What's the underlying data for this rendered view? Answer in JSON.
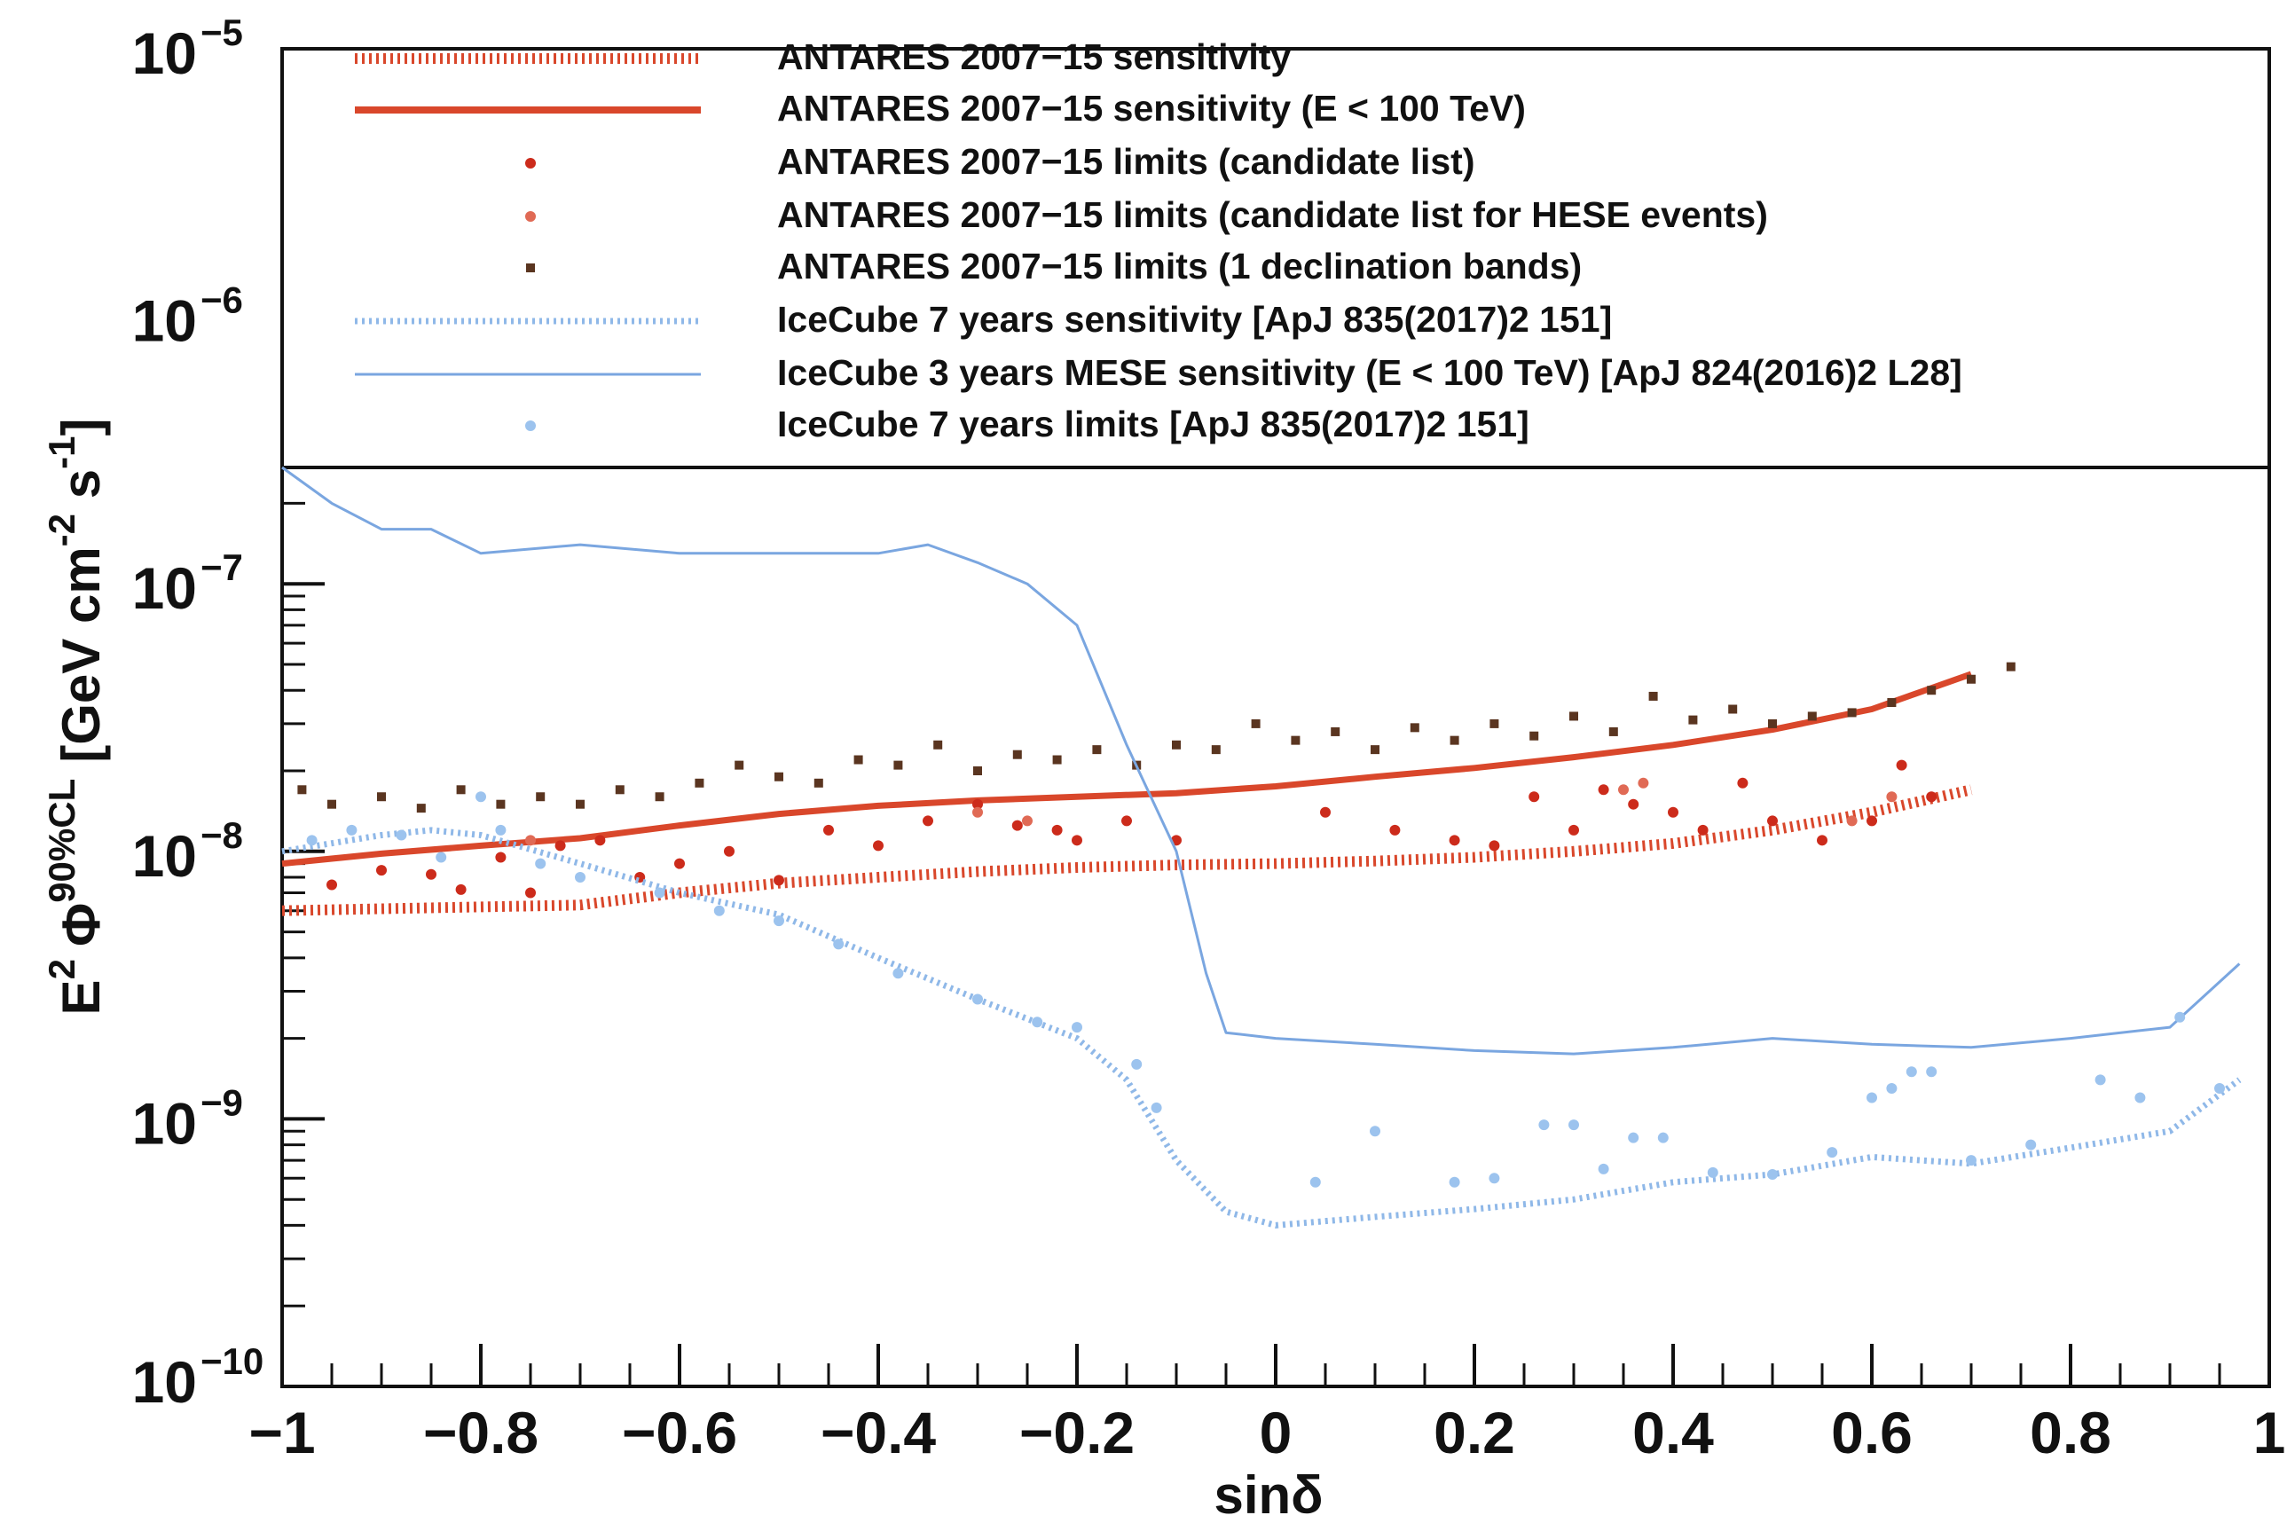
{
  "chart_data": {
    "type": "scatter",
    "title": "",
    "xlabel": "sinδ",
    "ylabel": "E² Φ⁹⁰%CL [GeV cm⁻² s⁻¹]",
    "ylabel_parts": {
      "base": "E",
      "sup1": "2",
      "phi": "Φ",
      "sup2": "90%CL",
      "unit_open": "[GeV cm",
      "unit_sup1": "-2",
      "unit_mid": " s",
      "unit_sup2": "-1",
      "unit_close": "]"
    },
    "xlim": [
      -1,
      1
    ],
    "ylim": [
      1e-10,
      1e-05
    ],
    "yscale": "log",
    "x_ticks": [
      {
        "value": -1,
        "label": "−1"
      },
      {
        "value": -0.8,
        "label": "−0.8"
      },
      {
        "value": -0.6,
        "label": "−0.6"
      },
      {
        "value": -0.4,
        "label": "−0.4"
      },
      {
        "value": -0.2,
        "label": "−0.2"
      },
      {
        "value": 0,
        "label": "0"
      },
      {
        "value": 0.2,
        "label": "0.2"
      },
      {
        "value": 0.4,
        "label": "0.4"
      },
      {
        "value": 0.6,
        "label": "0.6"
      },
      {
        "value": 0.8,
        "label": "0.8"
      },
      {
        "value": 1,
        "label": "1"
      }
    ],
    "y_ticks": [
      {
        "value": 1e-10,
        "base": "10",
        "exp": "−10"
      },
      {
        "value": 1e-09,
        "base": "10",
        "exp": "−9"
      },
      {
        "value": 1e-08,
        "base": "10",
        "exp": "−8"
      },
      {
        "value": 1e-07,
        "base": "10",
        "exp": "−7"
      },
      {
        "value": 1e-06,
        "base": "10",
        "exp": "−6"
      },
      {
        "value": 1e-05,
        "base": "10",
        "exp": "−5"
      }
    ],
    "legend_position": "top",
    "series": [
      {
        "name": "ANTARES 2007-15 sensitivity",
        "legend_label": "ANTARES 2007−15 sensitivity",
        "kind": "dotted-line",
        "color": "#d9472b",
        "x": [
          -1,
          -0.9,
          -0.8,
          -0.7,
          -0.6,
          -0.5,
          -0.4,
          -0.3,
          -0.2,
          -0.1,
          0,
          0.1,
          0.2,
          0.3,
          0.4,
          0.5,
          0.6,
          0.7
        ],
        "y": [
          6e-09,
          6.1e-09,
          6.2e-09,
          6.3e-09,
          7e-09,
          7.6e-09,
          8e-09,
          8.4e-09,
          8.7e-09,
          8.9e-09,
          9e-09,
          9.2e-09,
          9.5e-09,
          1e-08,
          1.07e-08,
          1.2e-08,
          1.4e-08,
          1.7e-08
        ]
      },
      {
        "name": "ANTARES 2007-15 sensitivity (Eν < 100 TeV)",
        "legend_label": "ANTARES 2007−15 sensitivity (E  < 100 TeV)",
        "kind": "solid-line",
        "color": "#d9472b",
        "x": [
          -1,
          -0.9,
          -0.8,
          -0.7,
          -0.6,
          -0.5,
          -0.4,
          -0.3,
          -0.2,
          -0.1,
          0,
          0.1,
          0.2,
          0.3,
          0.4,
          0.5,
          0.6,
          0.7
        ],
        "y": [
          9e-09,
          9.8e-09,
          1.05e-08,
          1.12e-08,
          1.25e-08,
          1.38e-08,
          1.48e-08,
          1.55e-08,
          1.6e-08,
          1.65e-08,
          1.75e-08,
          1.9e-08,
          2.05e-08,
          2.25e-08,
          2.5e-08,
          2.85e-08,
          3.4e-08,
          4.6e-08
        ]
      },
      {
        "name": "ANTARES 2007-15 limits (candidate list)",
        "legend_label": "ANTARES 2007−15 limits (candidate list)",
        "kind": "points",
        "color": "#cc2b1b",
        "x": [
          -0.95,
          -0.9,
          -0.85,
          -0.82,
          -0.78,
          -0.75,
          -0.72,
          -0.68,
          -0.64,
          -0.6,
          -0.55,
          -0.5,
          -0.45,
          -0.4,
          -0.35,
          -0.3,
          -0.26,
          -0.22,
          -0.2,
          -0.15,
          -0.1,
          0.05,
          0.12,
          0.18,
          0.22,
          0.26,
          0.3,
          0.33,
          0.36,
          0.4,
          0.43,
          0.47,
          0.5,
          0.55,
          0.6,
          0.63,
          0.66
        ],
        "y": [
          7.5e-09,
          8.5e-09,
          8.2e-09,
          7.2e-09,
          9.5e-09,
          7e-09,
          1.05e-08,
          1.1e-08,
          8e-09,
          9e-09,
          1e-08,
          7.8e-09,
          1.2e-08,
          1.05e-08,
          1.3e-08,
          1.5e-08,
          1.25e-08,
          1.2e-08,
          1.1e-08,
          1.3e-08,
          1.1e-08,
          1.4e-08,
          1.2e-08,
          1.1e-08,
          1.05e-08,
          1.6e-08,
          1.2e-08,
          1.7e-08,
          1.5e-08,
          1.4e-08,
          1.2e-08,
          1.8e-08,
          1.3e-08,
          1.1e-08,
          1.3e-08,
          2.1e-08,
          1.6e-08
        ]
      },
      {
        "name": "ANTARES 2007-15 limits (candidate list for HESE events)",
        "legend_label": "ANTARES 2007−15 limits (candidate list for HESE events)",
        "kind": "points",
        "color": "#e06a55",
        "x": [
          -0.75,
          -0.3,
          -0.25,
          0.35,
          0.37,
          0.58,
          0.62
        ],
        "y": [
          1.1e-08,
          1.4e-08,
          1.3e-08,
          1.7e-08,
          1.8e-08,
          1.3e-08,
          1.6e-08
        ]
      },
      {
        "name": "ANTARES 2007-15 limits (1° declination bands)",
        "legend_label": "ANTARES 2007−15 limits (1  declination bands)",
        "kind": "squares",
        "color": "#5a3520",
        "x": [
          -0.98,
          -0.95,
          -0.9,
          -0.86,
          -0.82,
          -0.78,
          -0.74,
          -0.7,
          -0.66,
          -0.62,
          -0.58,
          -0.54,
          -0.5,
          -0.46,
          -0.42,
          -0.38,
          -0.34,
          -0.3,
          -0.26,
          -0.22,
          -0.18,
          -0.14,
          -0.1,
          -0.06,
          -0.02,
          0.02,
          0.06,
          0.1,
          0.14,
          0.18,
          0.22,
          0.26,
          0.3,
          0.34,
          0.38,
          0.42,
          0.46,
          0.5,
          0.54,
          0.58,
          0.62,
          0.66,
          0.7,
          0.74
        ],
        "y": [
          1.7e-08,
          1.5e-08,
          1.6e-08,
          1.45e-08,
          1.7e-08,
          1.5e-08,
          1.6e-08,
          1.5e-08,
          1.7e-08,
          1.6e-08,
          1.8e-08,
          2.1e-08,
          1.9e-08,
          1.8e-08,
          2.2e-08,
          2.1e-08,
          2.5e-08,
          2e-08,
          2.3e-08,
          2.2e-08,
          2.4e-08,
          2.1e-08,
          2.5e-08,
          2.4e-08,
          3e-08,
          2.6e-08,
          2.8e-08,
          2.4e-08,
          2.9e-08,
          2.6e-08,
          3e-08,
          2.7e-08,
          3.2e-08,
          2.8e-08,
          3.8e-08,
          3.1e-08,
          3.4e-08,
          3e-08,
          3.2e-08,
          3.3e-08,
          3.6e-08,
          4e-08,
          4.4e-08,
          4.9e-08
        ]
      },
      {
        "name": "IceCube 7 years sensitivity [ApJ 835(2017)2 151]",
        "legend_label": "IceCube 7 years sensitivity [ApJ 835(2017)2 151]",
        "kind": "dotted-line",
        "color": "#8fb8e8",
        "x": [
          -1,
          -0.9,
          -0.85,
          -0.8,
          -0.7,
          -0.6,
          -0.5,
          -0.4,
          -0.3,
          -0.2,
          -0.15,
          -0.1,
          -0.05,
          0,
          0.1,
          0.2,
          0.3,
          0.4,
          0.5,
          0.6,
          0.7,
          0.8,
          0.9,
          0.97
        ],
        "y": [
          1e-08,
          1.15e-08,
          1.2e-08,
          1.15e-08,
          9e-09,
          7e-09,
          5.8e-09,
          4e-09,
          2.8e-09,
          2e-09,
          1.4e-09,
          7e-10,
          4.5e-10,
          4e-10,
          4.3e-10,
          4.6e-10,
          5e-10,
          5.8e-10,
          6.2e-10,
          7.2e-10,
          6.8e-10,
          7.8e-10,
          9e-10,
          1.4e-09
        ]
      },
      {
        "name": "IceCube 3 years MESE sensitivity (Eν < 100 TeV) [ApJ 824(2016)2 L28]",
        "legend_label": "IceCube 3 years MESE sensitivity (E  < 100 TeV) [ApJ 824(2016)2 L28]",
        "kind": "solid-line",
        "color": "#7aa6e0",
        "x": [
          -1,
          -0.95,
          -0.9,
          -0.85,
          -0.8,
          -0.7,
          -0.6,
          -0.5,
          -0.4,
          -0.35,
          -0.3,
          -0.25,
          -0.2,
          -0.15,
          -0.1,
          -0.07,
          -0.05,
          0,
          0.1,
          0.2,
          0.3,
          0.4,
          0.5,
          0.6,
          0.7,
          0.8,
          0.9,
          0.97
        ],
        "y": [
          3e-07,
          2e-07,
          1.6e-07,
          1.6e-07,
          1.3e-07,
          1.4e-07,
          1.3e-07,
          1.3e-07,
          1.3e-07,
          1.4e-07,
          1.2e-07,
          1e-07,
          7e-08,
          2.5e-08,
          1e-08,
          3.5e-09,
          2.1e-09,
          2e-09,
          1.9e-09,
          1.8e-09,
          1.75e-09,
          1.85e-09,
          2e-09,
          1.9e-09,
          1.85e-09,
          2e-09,
          2.2e-09,
          3.8e-09
        ]
      },
      {
        "name": "IceCube 7 years limits [ApJ 835(2017)2 151]",
        "legend_label": "IceCube 7 years limits [ApJ 835(2017)2 151]",
        "kind": "points",
        "color": "#9cc3ee",
        "x": [
          -0.97,
          -0.93,
          -0.88,
          -0.84,
          -0.8,
          -0.78,
          -0.74,
          -0.7,
          -0.62,
          -0.56,
          -0.5,
          -0.44,
          -0.38,
          -0.3,
          -0.24,
          -0.2,
          -0.14,
          -0.12,
          0.04,
          0.1,
          0.18,
          0.22,
          0.27,
          0.3,
          0.33,
          0.36,
          0.39,
          0.44,
          0.5,
          0.56,
          0.6,
          0.62,
          0.64,
          0.66,
          0.7,
          0.76,
          0.83,
          0.87,
          0.91,
          0.95
        ],
        "y": [
          1.1e-08,
          1.2e-08,
          1.15e-08,
          9.5e-09,
          1.6e-08,
          1.2e-08,
          9e-09,
          8e-09,
          7e-09,
          6e-09,
          5.5e-09,
          4.5e-09,
          3.5e-09,
          2.8e-09,
          2.3e-09,
          2.2e-09,
          1.6e-09,
          1.1e-09,
          5.8e-10,
          9e-10,
          5.8e-10,
          6e-10,
          9.5e-10,
          9.5e-10,
          6.5e-10,
          8.5e-10,
          8.5e-10,
          6.3e-10,
          6.2e-10,
          7.5e-10,
          1.2e-09,
          1.3e-09,
          1.5e-09,
          1.5e-09,
          7e-10,
          8e-10,
          1.4e-09,
          1.2e-09,
          2.4e-09,
          1.3e-09
        ]
      }
    ]
  }
}
